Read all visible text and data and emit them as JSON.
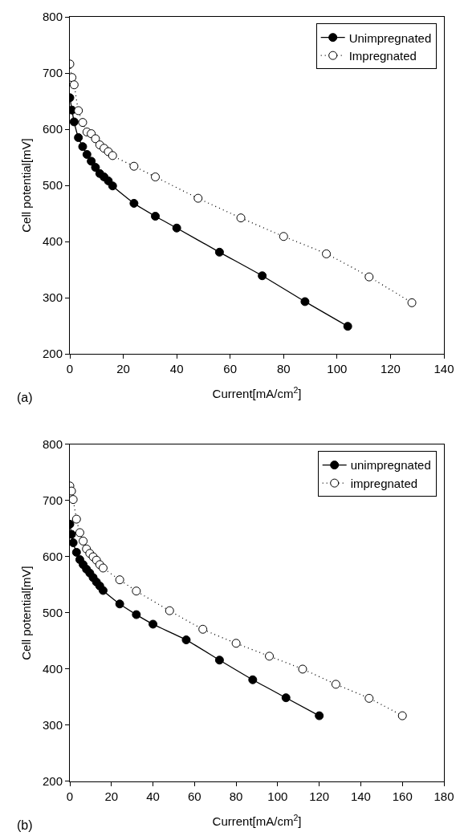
{
  "chart_data": [
    {
      "type": "line",
      "xlabel": "Current[mA/cm$^{2}$]",
      "ylabel": "Cell potential[mV]",
      "xlim": [
        0,
        140
      ],
      "xticks": [
        0,
        20,
        40,
        60,
        80,
        100,
        120,
        140
      ],
      "ylim": [
        200,
        800
      ],
      "yticks": [
        200,
        300,
        400,
        500,
        600,
        700,
        800
      ],
      "legend": "top right",
      "annotations": [
        "(a)"
      ],
      "series": [
        {
          "name": "Unimpregnated",
          "color": "#000000",
          "marker": "circle",
          "line_style": "solid",
          "x": [
            0,
            0.8,
            1.6,
            3.2,
            4.8,
            6.4,
            8,
            9.6,
            11.2,
            12.8,
            14.4,
            16,
            24,
            32,
            40,
            56,
            72,
            88,
            104
          ],
          "values": [
            656,
            634,
            613,
            585,
            569,
            555,
            543,
            532,
            521,
            515,
            508,
            499,
            468,
            445,
            424,
            381,
            339,
            293,
            249
          ]
        },
        {
          "name": "Impregnated",
          "color": "#000000",
          "marker": "circle-open",
          "line_style": "dotted",
          "x": [
            0,
            0.8,
            1.6,
            3.2,
            4.8,
            6.4,
            8,
            9.6,
            11.2,
            12.8,
            14.4,
            16,
            24,
            32,
            48,
            64,
            80,
            96,
            112,
            128
          ],
          "values": [
            716,
            692,
            679,
            633,
            612,
            595,
            592,
            583,
            572,
            566,
            560,
            553,
            534,
            515,
            477,
            442,
            409,
            378,
            337,
            291
          ]
        }
      ]
    },
    {
      "type": "line",
      "xlabel": "Current[mA/cm$^{2}$]",
      "ylabel": "Cell potential[mV]",
      "xlim": [
        0,
        180
      ],
      "xticks": [
        0,
        20,
        40,
        60,
        80,
        100,
        120,
        140,
        160,
        180
      ],
      "ylim": [
        200,
        800
      ],
      "yticks": [
        200,
        300,
        400,
        500,
        600,
        700,
        800
      ],
      "legend": "top right",
      "annotations": [
        "(b)"
      ],
      "series": [
        {
          "name": "unimpregnated",
          "color": "#000000",
          "marker": "circle",
          "line_style": "solid",
          "x": [
            0,
            0.8,
            1.6,
            3.2,
            4.8,
            6.4,
            8,
            9.6,
            11.2,
            12.8,
            14.4,
            16,
            24,
            32,
            40,
            56,
            72,
            88,
            104,
            120
          ],
          "values": [
            658,
            640,
            625,
            608,
            595,
            586,
            578,
            571,
            563,
            555,
            548,
            540,
            516,
            497,
            480,
            452,
            416,
            381,
            349,
            317
          ]
        },
        {
          "name": "impregnated",
          "color": "#000000",
          "marker": "circle-open",
          "line_style": "dotted",
          "x": [
            0,
            0.8,
            1.6,
            3.2,
            4.8,
            6.4,
            8,
            9.6,
            11.2,
            12.8,
            14.4,
            16,
            24,
            32,
            48,
            64,
            80,
            96,
            112,
            128,
            144,
            160
          ],
          "values": [
            726,
            717,
            702,
            667,
            643,
            628,
            614,
            606,
            600,
            594,
            586,
            580,
            559,
            539,
            504,
            471,
            446,
            423,
            400,
            373,
            348,
            317
          ]
        }
      ]
    }
  ]
}
